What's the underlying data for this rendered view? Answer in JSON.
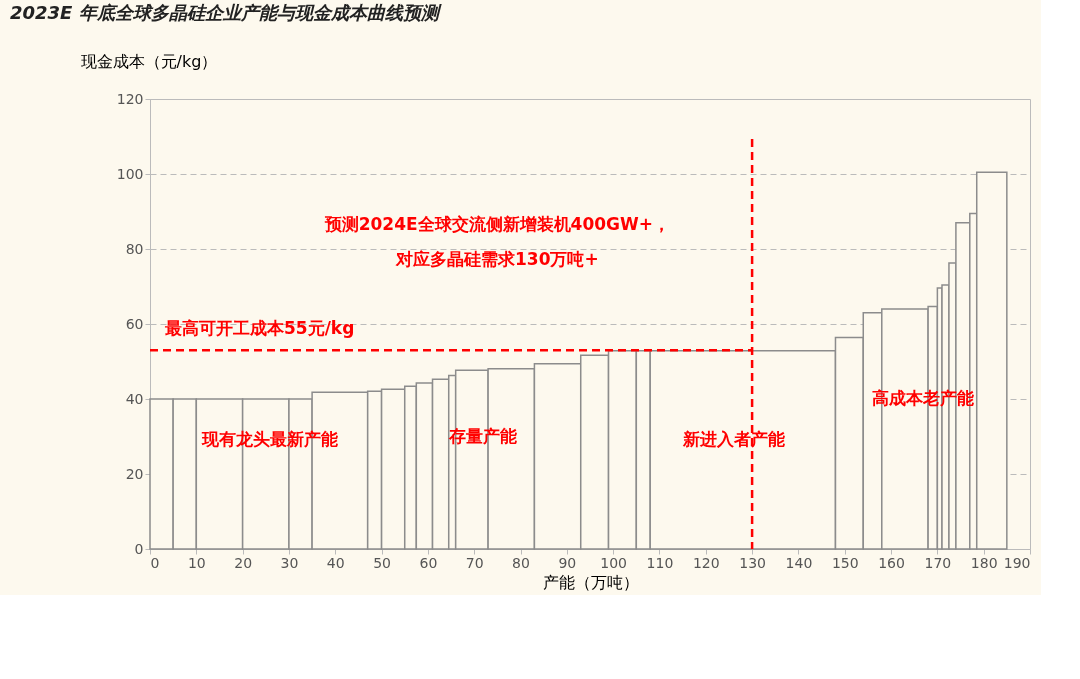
{
  "chart_data": {
    "type": "bar",
    "title": "2023E 年底全球多晶硅企业产能与现金成本曲线预测",
    "xlabel": "产能（万吨）",
    "ylabel": "现金成本（元/kg）",
    "x": [
      2.5,
      7.5,
      15,
      25,
      32.5,
      41,
      48.5,
      52.5,
      56.25,
      59.25,
      62.75,
      65.25,
      69.5,
      78,
      88,
      96,
      102,
      106.5,
      128,
      151,
      156,
      163,
      169,
      170.5,
      171.75,
      173.25,
      175.5,
      177.75,
      181.75
    ],
    "series": [
      {
        "color": "#fdf9ee",
        "values": [
          40,
          40,
          40,
          40,
          40,
          41.8,
          42.1,
          42.6,
          43.4,
          44.3,
          45.3,
          46.3,
          47.7,
          48.1,
          49.4,
          51.7,
          52.9,
          52.9,
          52.9,
          56.4,
          63,
          64,
          64.7,
          69.6,
          70.4,
          76.3,
          87,
          89.5,
          100.5
        ]
      },
      {
        "name": "最高可开工成本55元/kg",
        "type": "line",
        "x": [
          0,
          130
        ],
        "values": [
          53,
          53
        ],
        "color": "#ff0000",
        "line_style": "dashed"
      }
    ],
    "ref_lines": [
      {
        "axis": "x",
        "value": 130,
        "color": "#ff0000",
        "line_style": "dashed"
      }
    ],
    "annotations": [
      "预测2024E全球交流侧新增装机400GW+，",
      "对应多晶硅需求130万吨+",
      "现有龙头最新产能",
      "存量产能",
      "新进入者产能",
      "高成本老产能"
    ],
    "xlim": [
      0,
      190
    ],
    "xticks": [
      0,
      10,
      20,
      30,
      40,
      50,
      60,
      70,
      80,
      90,
      100,
      110,
      120,
      130,
      140,
      150,
      160,
      170,
      180,
      190
    ],
    "ylim": [
      0,
      120
    ],
    "yticks": [
      0,
      20,
      40,
      60,
      80,
      100,
      120
    ],
    "grid": "y"
  }
}
